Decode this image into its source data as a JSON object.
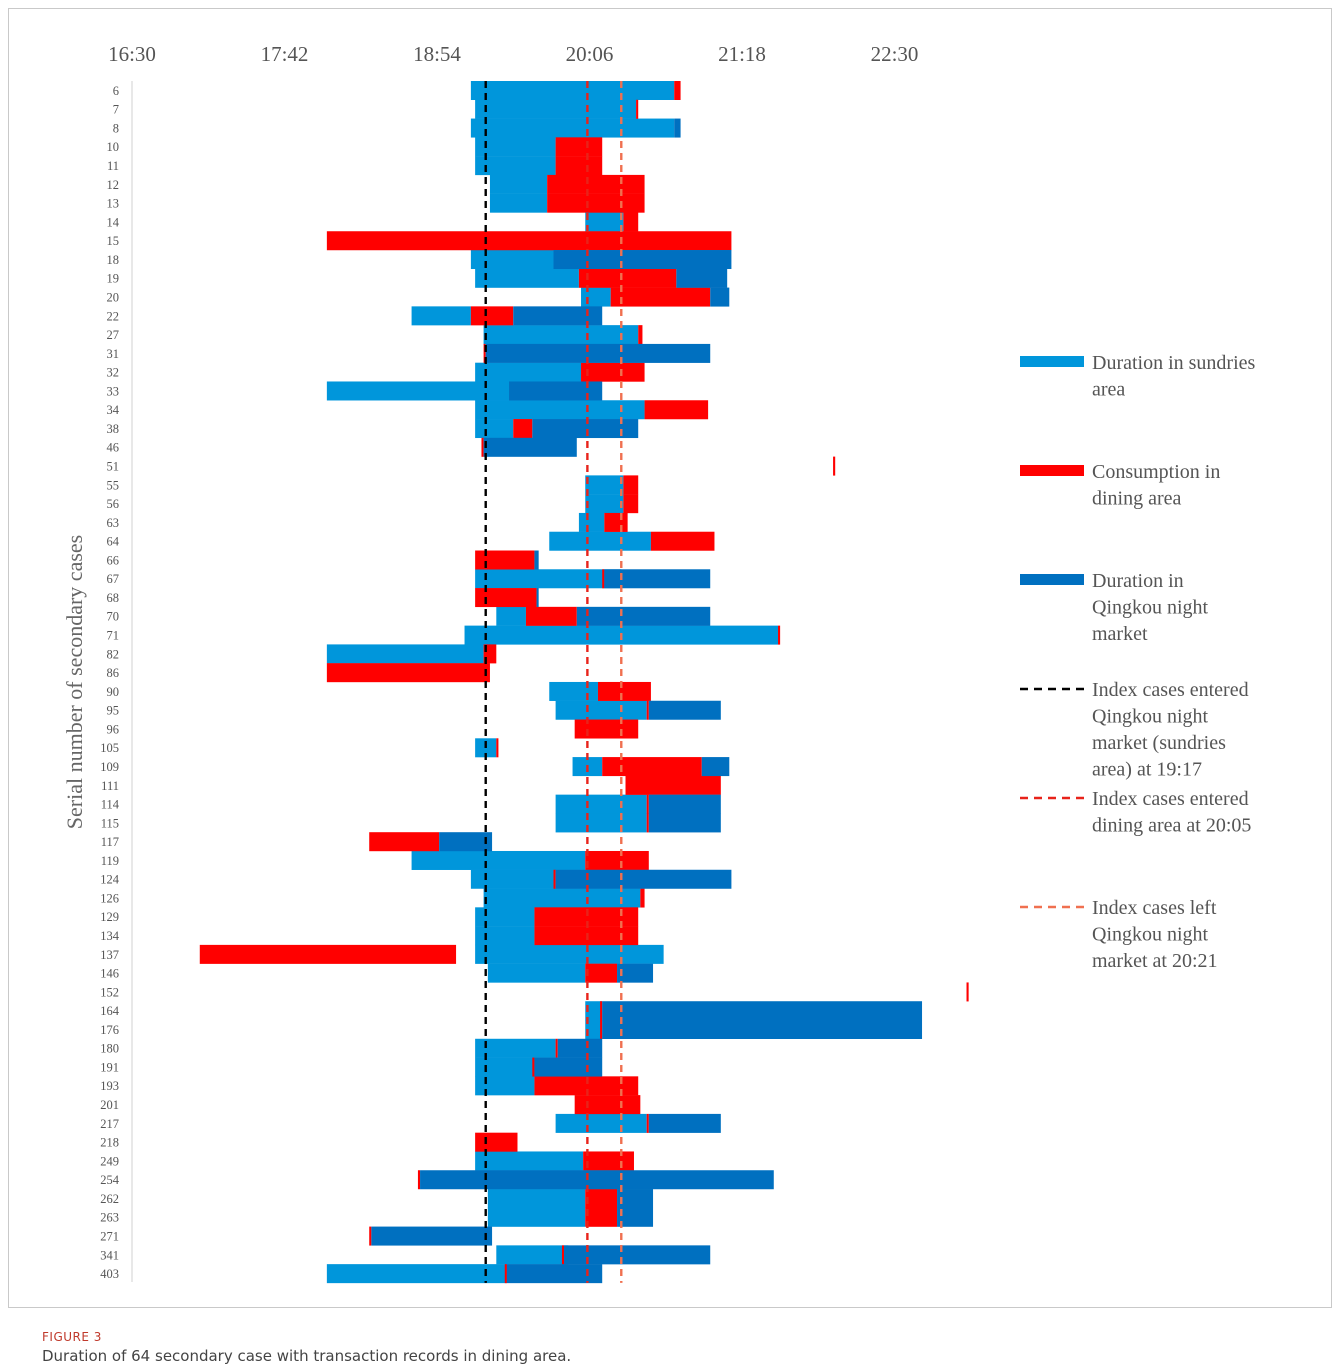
{
  "figure": {
    "label": "FIGURE 3",
    "caption": "Duration of 64 secondary case with transaction records in dining area."
  },
  "chart_data": {
    "type": "bar",
    "orientation": "horizontal-timeline",
    "ylabel": "Serial number of secondary cases",
    "x_ticks": [
      "16:30",
      "17:42",
      "18:54",
      "20:06",
      "21:18",
      "22:30"
    ],
    "x_tick_minutes": [
      990,
      1062,
      1134,
      1206,
      1278,
      1350
    ],
    "x_axis_position": "top",
    "categories": [
      "6",
      "7",
      "8",
      "10",
      "11",
      "12",
      "13",
      "14",
      "15",
      "18",
      "19",
      "20",
      "22",
      "27",
      "31",
      "32",
      "33",
      "34",
      "38",
      "46",
      "51",
      "55",
      "56",
      "63",
      "64",
      "66",
      "67",
      "68",
      "70",
      "71",
      "82",
      "86",
      "90",
      "95",
      "96",
      "105",
      "109",
      "111",
      "114",
      "115",
      "117",
      "119",
      "124",
      "126",
      "129",
      "134",
      "137",
      "146",
      "152",
      "164",
      "176",
      "180",
      "191",
      "193",
      "201",
      "217",
      "218",
      "249",
      "254",
      "262",
      "263",
      "271",
      "341",
      "403"
    ],
    "colors": {
      "sundries": "#0096db",
      "dining": "#ff0000",
      "market": "#0070c0",
      "index_entered_sundries": "#000000",
      "index_entered_dining": "#e8231a",
      "index_left": "#f07050"
    },
    "series": [
      {
        "name": "Duration in sundries area",
        "key": "sundries",
        "unit": "minutes since midnight",
        "ranges": [
          [
            1150,
            1246
          ],
          [
            1152,
            1228
          ],
          [
            1150,
            1246
          ],
          [
            1152,
            1190
          ],
          [
            1152,
            1190
          ],
          [
            1159,
            1186
          ],
          [
            1159,
            1186
          ],
          [
            1204,
            1222
          ],
          [],
          [
            1150,
            1189
          ],
          [
            1152,
            1201
          ],
          [
            1202,
            1216
          ],
          [
            1122,
            1150
          ],
          [
            1156,
            1229
          ],
          [],
          [
            1152,
            1202
          ],
          [
            1082,
            1168
          ],
          [
            1152,
            1232
          ],
          [
            1152,
            1170
          ],
          [],
          [],
          [
            1204,
            1222
          ],
          [
            1204,
            1222
          ],
          [
            1201,
            1213
          ],
          [
            1187,
            1235
          ],
          [],
          [
            1152,
            1221
          ],
          [],
          [
            1162,
            1176
          ],
          [
            1147,
            1295
          ],
          [
            1082,
            1156
          ],
          [],
          [
            1187,
            1210
          ],
          [
            1190,
            1233
          ],
          [],
          [
            1152,
            1162
          ],
          [
            1198,
            1212
          ],
          [],
          [
            1190,
            1233
          ],
          [
            1190,
            1233
          ],
          [],
          [
            1122,
            1204
          ],
          [
            1150,
            1190
          ],
          [
            1156,
            1230
          ],
          [
            1152,
            1180
          ],
          [
            1152,
            1180
          ],
          [
            1152,
            1241
          ],
          [
            1158,
            1204
          ],
          [],
          [
            1204,
            1212
          ],
          [
            1204,
            1212
          ],
          [
            1152,
            1190
          ],
          [
            1152,
            1180
          ],
          [
            1152,
            1180
          ],
          [],
          [
            1190,
            1233
          ],
          [],
          [
            1152,
            1203
          ],
          [],
          [
            1158,
            1204
          ],
          [
            1158,
            1204
          ],
          [],
          [
            1162,
            1196
          ],
          [
            1082,
            1167
          ]
        ]
      },
      {
        "name": "Consumption in dining area",
        "key": "dining",
        "unit": "minutes since midnight",
        "ranges": [
          [
            1246,
            1249
          ],
          [
            1228,
            1229
          ],
          [],
          [
            1190,
            1212
          ],
          [
            1190,
            1212
          ],
          [
            1186,
            1232
          ],
          [
            1186,
            1232
          ],
          [
            1222,
            1229
          ],
          [
            1082,
            1273
          ],
          [],
          [
            1201,
            1247
          ],
          [
            1216,
            1263
          ],
          [
            1150,
            1170
          ],
          [
            1229,
            1231
          ],
          [
            1156,
            1157
          ],
          [
            1202,
            1232
          ],
          [],
          [
            1232,
            1262
          ],
          [
            1170,
            1179
          ],
          [
            1155,
            1156
          ],
          [
            1321,
            1322
          ],
          [
            1222,
            1229
          ],
          [
            1222,
            1229
          ],
          [
            1213,
            1224
          ],
          [
            1235,
            1265
          ],
          [
            1152,
            1180
          ],
          [
            1212,
            1213
          ],
          [
            1152,
            1181
          ],
          [
            1176,
            1200
          ],
          [
            1295,
            1296
          ],
          [
            1156,
            1162
          ],
          [
            1082,
            1159
          ],
          [
            1210,
            1235
          ],
          [
            1233,
            1234
          ],
          [
            1199,
            1229
          ],
          [
            1162,
            1163
          ],
          [
            1212,
            1259
          ],
          [
            1223,
            1268
          ],
          [
            1233,
            1234
          ],
          [
            1233,
            1234
          ],
          [
            1102,
            1135
          ],
          [
            1204,
            1234
          ],
          [
            1189,
            1190
          ],
          [
            1230,
            1232
          ],
          [
            1180,
            1229
          ],
          [
            1180,
            1229
          ],
          [
            1022,
            1143
          ],
          [
            1204,
            1219
          ],
          [
            1384,
            1385
          ],
          [
            1211,
            1212
          ],
          [
            1211,
            1212
          ],
          [
            1190,
            1191
          ],
          [
            1179,
            1180
          ],
          [
            1180,
            1229
          ],
          [
            1199,
            1230
          ],
          [
            1233,
            1234
          ],
          [
            1152,
            1172
          ],
          [
            1203,
            1227
          ],
          [
            1125,
            1126
          ],
          [
            1204,
            1219
          ],
          [
            1204,
            1219
          ],
          [
            1102,
            1103
          ],
          [
            1193,
            1194
          ],
          [
            1166,
            1167
          ]
        ]
      },
      {
        "name": "Duration in Qingkou night market",
        "key": "market",
        "unit": "minutes since midnight",
        "ranges": [
          [],
          [],
          [
            1246,
            1249
          ],
          [],
          [],
          [],
          [],
          [],
          [],
          [
            1189,
            1273
          ],
          [
            1247,
            1271
          ],
          [
            1263,
            1272
          ],
          [
            1170,
            1212
          ],
          [],
          [
            1157,
            1263
          ],
          [],
          [
            1168,
            1212
          ],
          [],
          [
            1179,
            1229
          ],
          [
            1156,
            1200
          ],
          [],
          [],
          [],
          [],
          [],
          [
            1180,
            1182
          ],
          [
            1213,
            1263
          ],
          [
            1181,
            1182
          ],
          [
            1200,
            1263
          ],
          [],
          [],
          [],
          [],
          [
            1234,
            1268
          ],
          [],
          [],
          [
            1259,
            1272
          ],
          [],
          [
            1234,
            1268
          ],
          [
            1234,
            1268
          ],
          [
            1135,
            1160
          ],
          [],
          [
            1190,
            1273
          ],
          [],
          [],
          [],
          [],
          [
            1219,
            1236
          ],
          [],
          [
            1212,
            1363
          ],
          [
            1212,
            1363
          ],
          [
            1191,
            1212
          ],
          [
            1180,
            1212
          ],
          [],
          [],
          [
            1234,
            1268
          ],
          [],
          [],
          [
            1126,
            1293
          ],
          [
            1219,
            1236
          ],
          [
            1219,
            1236
          ],
          [
            1103,
            1160
          ],
          [
            1194,
            1263
          ],
          [
            1167,
            1212
          ]
        ]
      }
    ],
    "reference_lines": [
      {
        "name": "Index cases entered Qingkou night market (sundries area) at 19:17",
        "x": "19:17",
        "minutes": 1157,
        "color_key": "index_entered_sundries"
      },
      {
        "name": "Index cases entered dining area at 20:05",
        "x": "20:05",
        "minutes": 1205,
        "color_key": "index_entered_dining"
      },
      {
        "name": "Index cases left Qingkou night market at 20:21",
        "x": "20:21",
        "minutes": 1221,
        "color_key": "index_left"
      }
    ],
    "legend": {
      "position": "right",
      "items": [
        {
          "type": "bar",
          "color_key": "sundries",
          "lines": [
            "Duration in sundries",
            "area"
          ]
        },
        {
          "type": "bar",
          "color_key": "dining",
          "lines": [
            "Consumption in",
            "dining area"
          ]
        },
        {
          "type": "bar",
          "color_key": "market",
          "lines": [
            "Duration in",
            "Qingkou night",
            "market"
          ]
        },
        {
          "type": "dash",
          "color_key": "index_entered_sundries",
          "lines": [
            "Index cases entered",
            "Qingkou night",
            "market (sundries",
            "area) at 19:17"
          ]
        },
        {
          "type": "dash",
          "color_key": "index_entered_dining",
          "lines": [
            "Index cases entered",
            "dining area at 20:05"
          ]
        },
        {
          "type": "dash",
          "color_key": "index_left",
          "lines": [
            "Index cases left",
            "Qingkou night",
            "market at 20:21"
          ]
        }
      ]
    },
    "grid": false
  }
}
